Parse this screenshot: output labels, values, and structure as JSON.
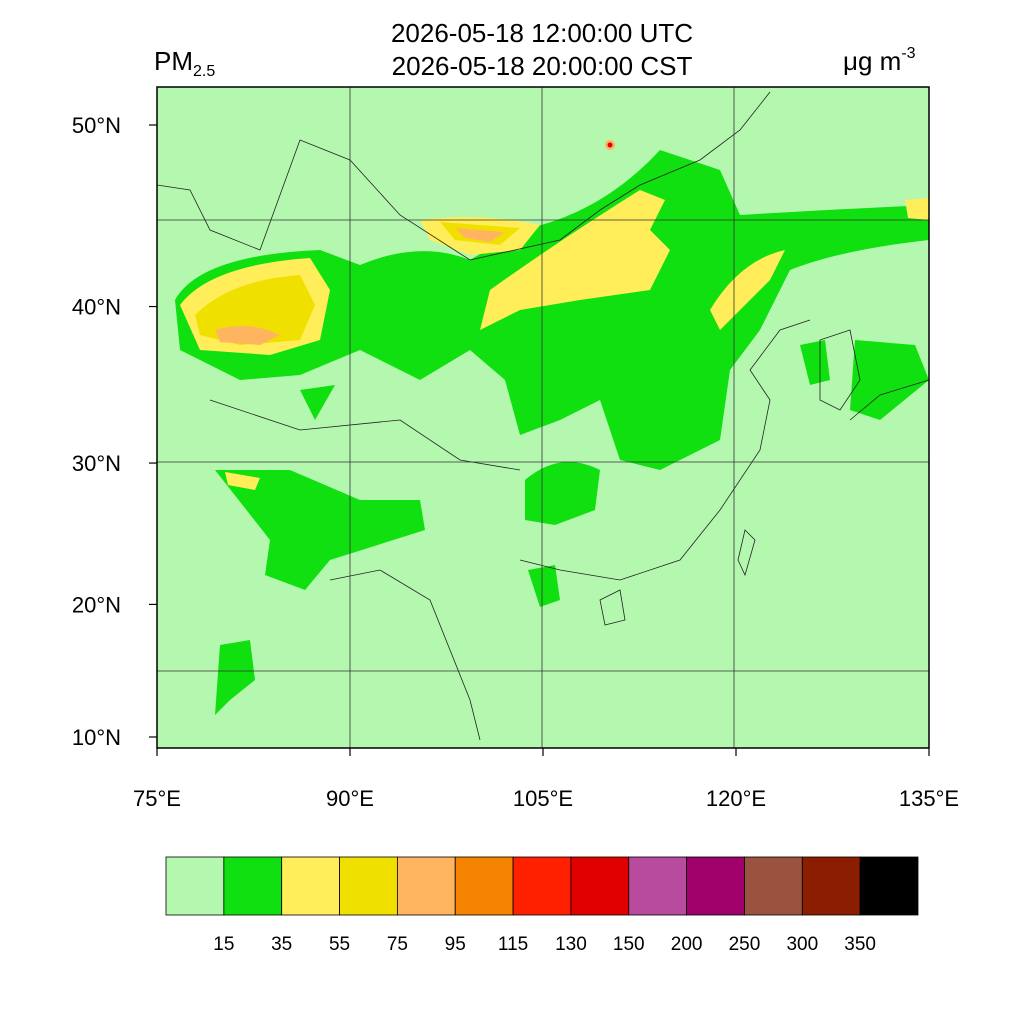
{
  "title": {
    "utc": "2026-05-18 12:00:00 UTC",
    "cst": "2026-05-18 20:00:00 CST"
  },
  "variable": {
    "name": "PM",
    "subscript": "2.5"
  },
  "units": {
    "text": "μg m",
    "superscript": "-3"
  },
  "map": {
    "lon_ticks": [
      {
        "value": 75,
        "label": "75°E"
      },
      {
        "value": 90,
        "label": "90°E"
      },
      {
        "value": 105,
        "label": "105°E"
      },
      {
        "value": 120,
        "label": "120°E"
      },
      {
        "value": 135,
        "label": "135°E"
      }
    ],
    "lat_ticks": [
      {
        "value": 10,
        "label": "10°N"
      },
      {
        "value": 20,
        "label": "20°N"
      },
      {
        "value": 30,
        "label": "30°N"
      },
      {
        "value": 40,
        "label": "40°N"
      },
      {
        "value": 50,
        "label": "50°N"
      }
    ]
  },
  "colorbar": {
    "levels": [
      15,
      35,
      55,
      75,
      95,
      115,
      130,
      150,
      200,
      250,
      300,
      350
    ],
    "colors": [
      "#b4f8b0",
      "#10e010",
      "#ffee5a",
      "#f0e000",
      "#ffb460",
      "#f58200",
      "#ff2000",
      "#e00000",
      "#b84b9e",
      "#a0006a",
      "#99533f",
      "#8b1e00",
      "#000000"
    ]
  }
}
